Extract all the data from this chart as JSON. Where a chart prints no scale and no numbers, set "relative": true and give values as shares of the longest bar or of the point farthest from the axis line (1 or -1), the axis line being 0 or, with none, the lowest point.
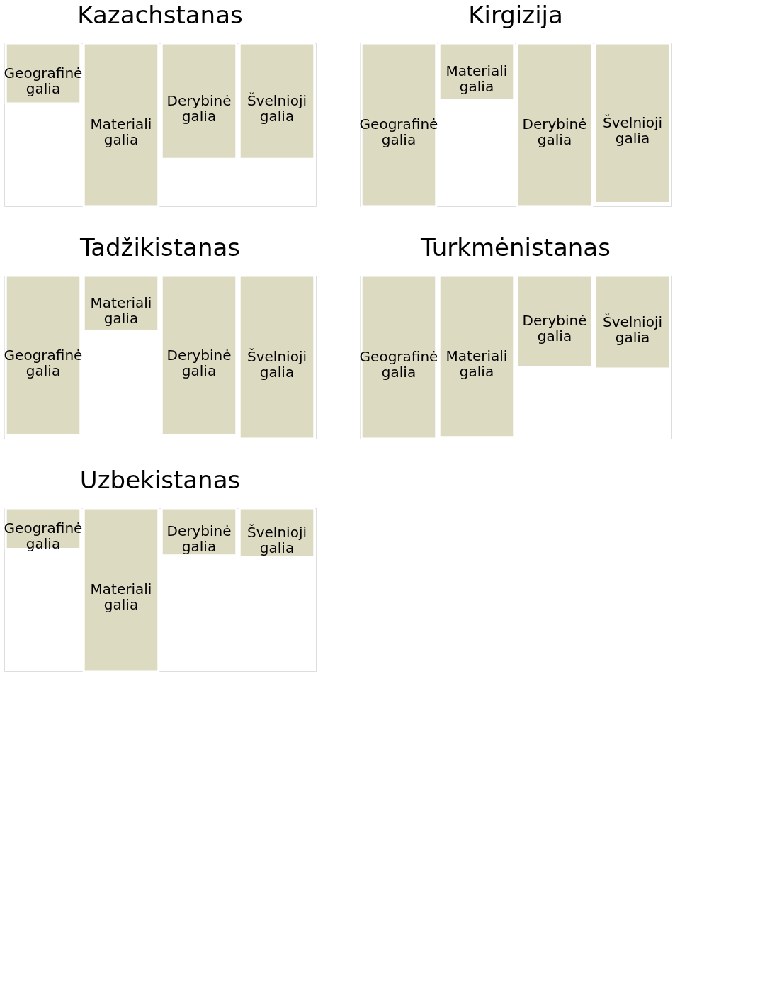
{
  "chart_data": [
    {
      "type": "bar",
      "title": "Kazachstanas",
      "relative": true,
      "tick_labels": false,
      "color": "#dddac2",
      "categories": [
        "Geografinė galia",
        "Materiali galia",
        "Derybinė galia",
        "Švelnioji galia"
      ],
      "values": [
        -0.37,
        -1,
        -0.71,
        -0.71
      ]
    },
    {
      "type": "bar",
      "title": "Kirgizija",
      "relative": true,
      "tick_labels": false,
      "color": "#dddac2",
      "categories": [
        "Geografinė galia",
        "Materiali galia",
        "Derybinė galia",
        "Švelnioji galia"
      ],
      "values": [
        -1,
        -0.35,
        -1,
        -0.98
      ]
    },
    {
      "type": "bar",
      "title": "Tadžikistanas",
      "relative": true,
      "tick_labels": false,
      "color": "#dddac2",
      "categories": [
        "Geografinė galia",
        "Materiali galia",
        "Derybinė galia",
        "Švelnioji galia"
      ],
      "values": [
        -0.98,
        -0.34,
        -0.98,
        -1
      ]
    },
    {
      "type": "bar",
      "title": "Turkmėnistanas",
      "relative": true,
      "tick_labels": false,
      "color": "#dddac2",
      "categories": [
        "Geografinė galia",
        "Materiali galia",
        "Derybinė galia",
        "Švelnioji galia"
      ],
      "values": [
        -1,
        -0.99,
        -0.56,
        -0.57
      ]
    },
    {
      "type": "bar",
      "title": "Uzbekistanas",
      "relative": true,
      "tick_labels": false,
      "color": "#dddac2",
      "categories": [
        "Geografinė galia",
        "Materiali galia",
        "Derybinė galia",
        "Švelnioji galia"
      ],
      "values": [
        -0.25,
        -1,
        -0.29,
        -0.3
      ]
    }
  ]
}
